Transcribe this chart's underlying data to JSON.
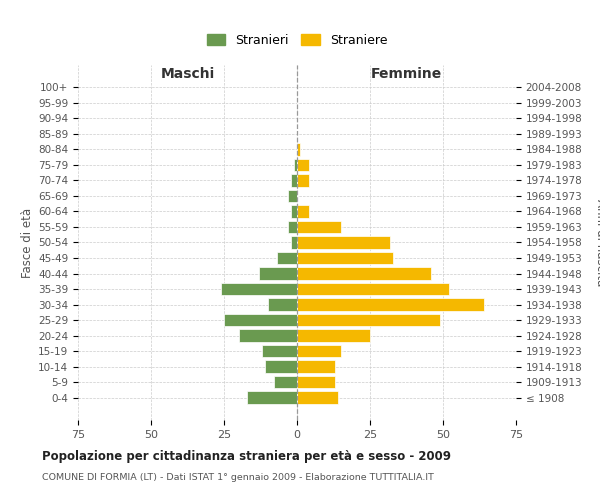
{
  "age_groups": [
    "100+",
    "95-99",
    "90-94",
    "85-89",
    "80-84",
    "75-79",
    "70-74",
    "65-69",
    "60-64",
    "55-59",
    "50-54",
    "45-49",
    "40-44",
    "35-39",
    "30-34",
    "25-29",
    "20-24",
    "15-19",
    "10-14",
    "5-9",
    "0-4"
  ],
  "birth_years": [
    "≤ 1908",
    "1909-1913",
    "1914-1918",
    "1919-1923",
    "1924-1928",
    "1929-1933",
    "1934-1938",
    "1939-1943",
    "1944-1948",
    "1949-1953",
    "1954-1958",
    "1959-1963",
    "1964-1968",
    "1969-1973",
    "1974-1978",
    "1979-1983",
    "1984-1988",
    "1989-1993",
    "1994-1998",
    "1999-2003",
    "2004-2008"
  ],
  "maschi": [
    0,
    0,
    0,
    0,
    0,
    1,
    2,
    3,
    2,
    3,
    2,
    7,
    13,
    26,
    10,
    25,
    20,
    12,
    11,
    8,
    17
  ],
  "femmine": [
    0,
    0,
    0,
    0,
    1,
    4,
    4,
    0,
    4,
    15,
    32,
    33,
    46,
    52,
    64,
    49,
    25,
    15,
    13,
    13,
    14
  ],
  "color_maschi": "#6a9a50",
  "color_femmine": "#f5b800",
  "title": "Popolazione per cittadinanza straniera per età e sesso - 2009",
  "subtitle": "COMUNE DI FORMIA (LT) - Dati ISTAT 1° gennaio 2009 - Elaborazione TUTTITALIA.IT",
  "xlabel_left": "Maschi",
  "xlabel_right": "Femmine",
  "ylabel_left": "Fasce di età",
  "ylabel_right": "Anni di nascita",
  "legend_maschi": "Stranieri",
  "legend_femmine": "Straniere",
  "xlim": 75,
  "background_color": "#ffffff",
  "grid_color": "#cccccc"
}
